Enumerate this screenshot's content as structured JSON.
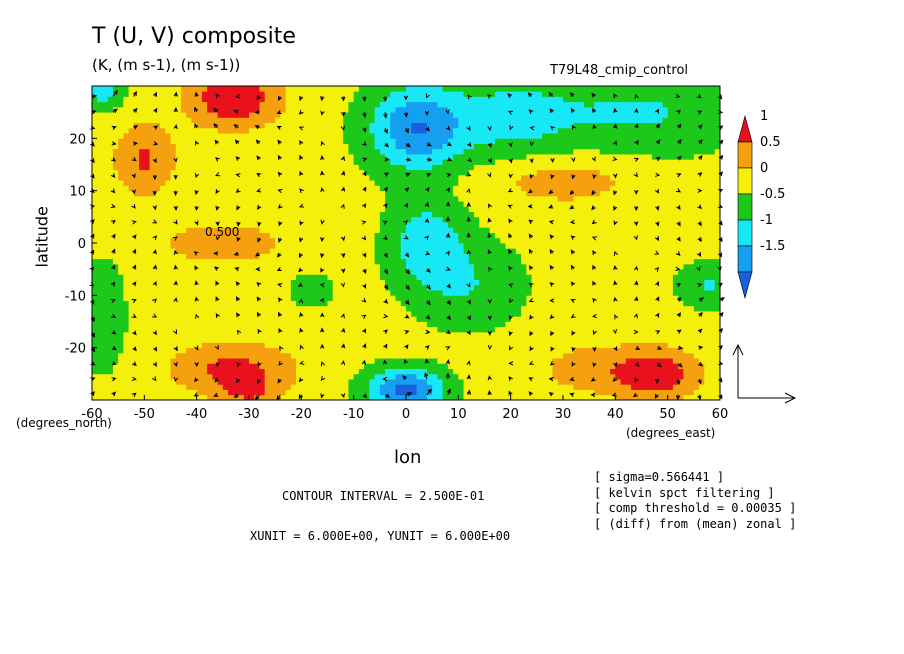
{
  "figure": {
    "title": "T (U, V) composite",
    "subtitle": "(K, (m s-1), (m s-1))",
    "run_label": "T79L48_cmip_control",
    "contour_interval": "CONTOUR INTERVAL = 2.500E-01",
    "vector_units": "XUNIT = 6.000E+00, YUNIT = 6.000E+00",
    "notes": [
      "[ sigma=0.566441 ]",
      "[ kelvin spct filtering ]",
      "[ comp threshold = 0.00035 ]",
      "[ (diff) from (mean) zonal ]"
    ]
  },
  "chart_data": {
    "type": "heatmap",
    "title": "T (U, V) composite",
    "subtitle": "(K, (m s-1), (m s-1))",
    "xlabel": "lon",
    "ylabel": "latitude",
    "x_unit_label": "(degrees_east)",
    "y_unit_label": "(degrees_north)",
    "xlim": [
      -60,
      60
    ],
    "ylim": [
      -30,
      30
    ],
    "x_ticks": [
      -60,
      -50,
      -40,
      -30,
      -20,
      -10,
      0,
      10,
      20,
      30,
      40,
      50,
      60
    ],
    "y_ticks": [
      -20,
      -10,
      0,
      10,
      20
    ],
    "contour_label": "0.500",
    "legend": {
      "position": "right",
      "labels": [
        "1",
        "0.5",
        "0",
        "-0.5",
        "-1",
        "-1.5"
      ],
      "bins": [
        {
          "min": 1.0,
          "max": 1.5,
          "color": "#e8111c"
        },
        {
          "min": 0.5,
          "max": 1.0,
          "color": "#f5a00f"
        },
        {
          "min": 0.0,
          "max": 0.5,
          "color": "#f4f00c"
        },
        {
          "min": -0.5,
          "max": 0.0,
          "color": "#1cc81a"
        },
        {
          "min": -1.0,
          "max": -0.5,
          "color": "#18e8f5"
        },
        {
          "min": -1.5,
          "max": -1.0,
          "color": "#169ff0"
        },
        {
          "min": -2.0,
          "max": -1.5,
          "color": "#1a5fe0"
        }
      ]
    },
    "features": [
      {
        "lon": -33,
        "lat": 28,
        "amp": 1.3,
        "sl": 9,
        "st": 6
      },
      {
        "lon": -50,
        "lat": 16,
        "amp": 0.9,
        "sl": 6,
        "st": 7
      },
      {
        "lon": -35,
        "lat": 0,
        "amp": 0.7,
        "sl": 12,
        "st": 4
      },
      {
        "lon": -33,
        "lat": -24,
        "amp": 1.0,
        "sl": 12,
        "st": 5
      },
      {
        "lon": -30,
        "lat": -29,
        "amp": 0.6,
        "sl": 6,
        "st": 3
      },
      {
        "lon": -58,
        "lat": -14,
        "amp": -0.6,
        "sl": 4,
        "st": 10
      },
      {
        "lon": -58,
        "lat": 29,
        "amp": -0.9,
        "sl": 4,
        "st": 3
      },
      {
        "lon": 2,
        "lat": 22,
        "amp": -1.6,
        "sl": 9,
        "st": 8
      },
      {
        "lon": 4,
        "lat": 0,
        "amp": -1.0,
        "sl": 7,
        "st": 8
      },
      {
        "lon": 0,
        "lat": -28,
        "amp": -1.9,
        "sl": 7,
        "st": 4
      },
      {
        "lon": 20,
        "lat": 24,
        "amp": -0.8,
        "sl": 12,
        "st": 8
      },
      {
        "lon": 45,
        "lat": 25,
        "amp": -0.7,
        "sl": 18,
        "st": 8
      },
      {
        "lon": 12,
        "lat": -8,
        "amp": -0.6,
        "sl": 10,
        "st": 8
      },
      {
        "lon": 58,
        "lat": -8,
        "amp": -0.7,
        "sl": 6,
        "st": 4
      },
      {
        "lon": 30,
        "lat": 12,
        "amp": 0.6,
        "sl": 15,
        "st": 5
      },
      {
        "lon": 48,
        "lat": -25,
        "amp": 1.2,
        "sl": 8,
        "st": 5
      },
      {
        "lon": 35,
        "lat": -24,
        "amp": 0.6,
        "sl": 10,
        "st": 5
      },
      {
        "lon": -18,
        "lat": -9,
        "amp": -0.5,
        "sl": 4,
        "st": 3
      }
    ],
    "wind_field_note": "vector arrows overlaid across full domain"
  }
}
